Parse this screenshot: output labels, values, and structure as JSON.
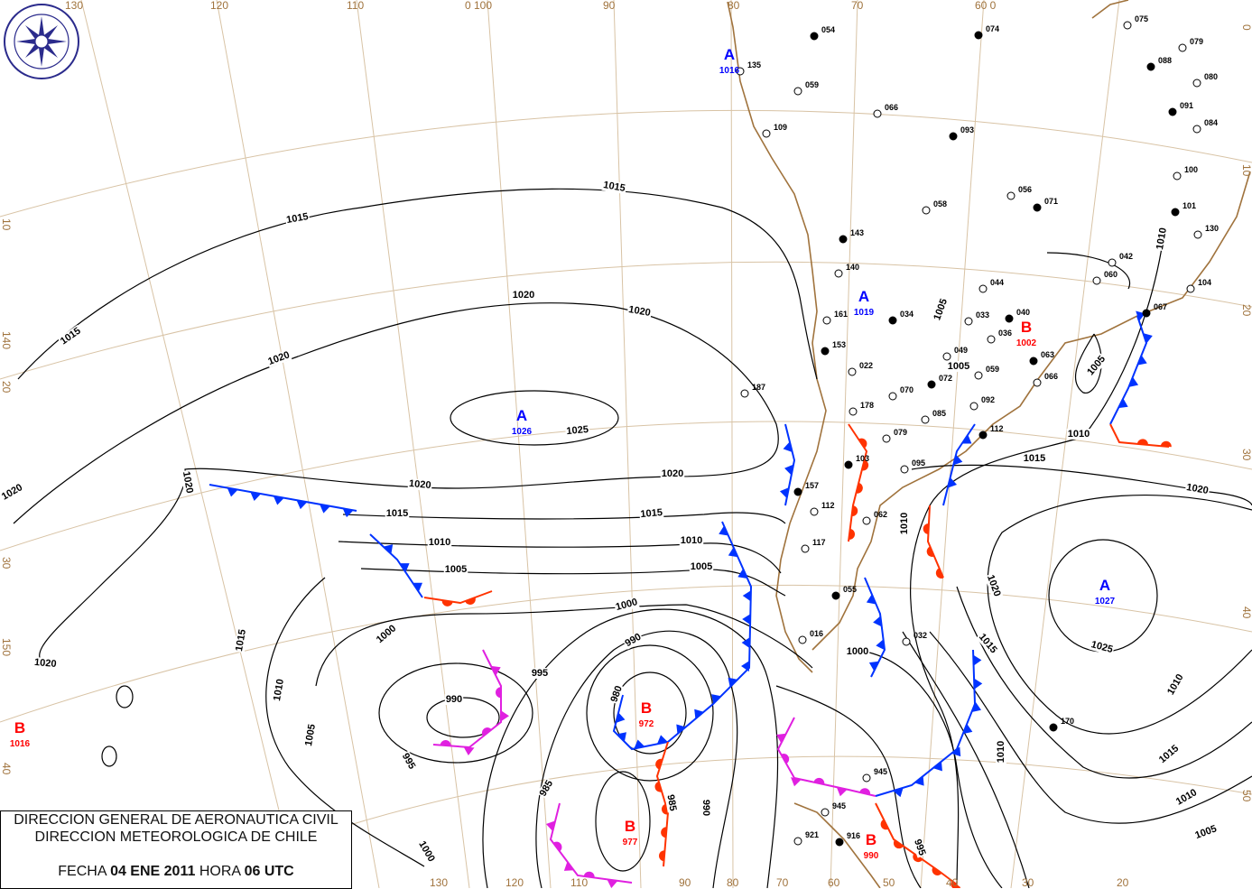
{
  "header": {
    "line1": "DIRECCION GENERAL DE AERONAUTICA CIVIL",
    "line2": "DIRECCION METEOROLOGICA DE CHILE",
    "fecha_label": "FECHA",
    "fecha_value": "04 ENE 2011",
    "hora_label": "HORA",
    "hora_value": "06 UTC"
  },
  "logo": {
    "text": "DIRECCION METEOROLOGICA CHILE"
  },
  "colors": {
    "high": "#0000ff",
    "low": "#ff0000",
    "cold_front": "#0033ff",
    "warm_front": "#ff3300",
    "occluded_front": "#e020e0",
    "coast": "#a0733d",
    "grid": "#d8c3a5"
  },
  "grid_labels": {
    "top": [
      "130",
      "120",
      "110",
      "0  100",
      "90",
      "80",
      "70",
      "60  0"
    ],
    "left": [
      "10",
      "140",
      "20",
      "30",
      "150",
      "40"
    ],
    "right": [
      "0",
      "10",
      "20",
      "30",
      "40",
      "50"
    ],
    "bottom": [
      "130",
      "120",
      "110",
      "90",
      "80",
      "70",
      "60",
      "50",
      "40",
      "30",
      "20"
    ]
  },
  "pressure_centers": [
    {
      "type": "A",
      "value": "1026"
    },
    {
      "type": "A",
      "value": "1019"
    },
    {
      "type": "A",
      "value": "1027"
    },
    {
      "type": "A",
      "value": "1016"
    },
    {
      "type": "B",
      "value": "1016"
    },
    {
      "type": "B",
      "value": "972"
    },
    {
      "type": "B",
      "value": "977"
    },
    {
      "type": "B",
      "value": "990"
    },
    {
      "type": "B",
      "value": "1002"
    }
  ],
  "isobar_labels": [
    "1015",
    "1015",
    "1015",
    "1020",
    "1020",
    "1020",
    "1020",
    "1025",
    "1020",
    "1020",
    "1020",
    "1015",
    "1015",
    "1010",
    "1010",
    "1005",
    "1005",
    "1000",
    "1000",
    "990",
    "995",
    "990",
    "980",
    "985",
    "985",
    "990",
    "995",
    "1000",
    "1005",
    "1010",
    "1015",
    "1020",
    "1010",
    "1015",
    "1020",
    "1025",
    "1020",
    "1015",
    "1010",
    "1005",
    "1010",
    "1005",
    "1005",
    "1010",
    "1015",
    "1000",
    "995",
    "1010",
    "1005",
    "1010"
  ],
  "stations": [
    "054",
    "059",
    "066",
    "093",
    "109",
    "135",
    "143",
    "140",
    "161",
    "153",
    "178",
    "187",
    "157",
    "112",
    "117",
    "055",
    "016",
    "945",
    "916",
    "921",
    "945",
    "074",
    "079",
    "080",
    "091",
    "084",
    "100",
    "101",
    "130",
    "104",
    "067",
    "042",
    "044",
    "034",
    "033",
    "036",
    "040",
    "049",
    "059",
    "063",
    "066",
    "070",
    "072",
    "085",
    "092",
    "112",
    "079",
    "095",
    "103",
    "062",
    "056",
    "071",
    "058",
    "075",
    "088",
    "060",
    "022",
    "170",
    "032"
  ]
}
